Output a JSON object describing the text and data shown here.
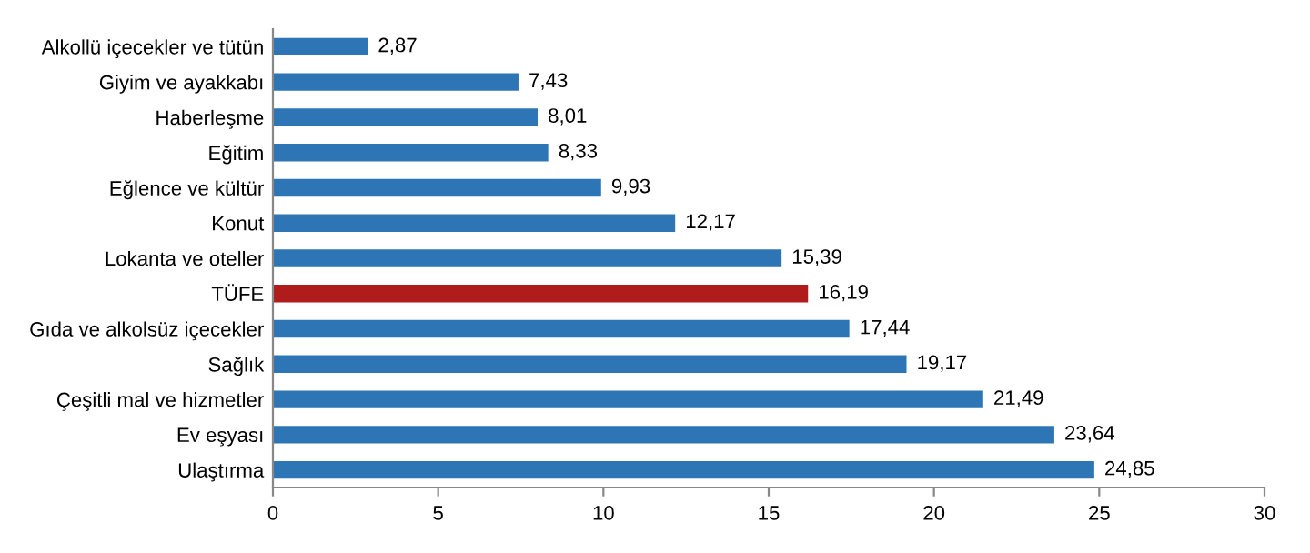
{
  "chart_data": {
    "type": "bar",
    "orientation": "horizontal",
    "categories": [
      "Alkollü içecekler ve tütün",
      "Giyim ve ayakkabı",
      "Haberleşme",
      "Eğitim",
      "Eğlence ve kültür",
      "Konut",
      "Lokanta ve oteller",
      "TÜFE",
      "Gıda ve alkolsüz içecekler",
      "Sağlık",
      "Çeşitli mal ve hizmetler",
      "Ev eşyası",
      "Ulaştırma"
    ],
    "values": [
      2.87,
      7.43,
      8.01,
      8.33,
      9.93,
      12.17,
      15.39,
      16.19,
      17.44,
      19.17,
      21.49,
      23.64,
      24.85
    ],
    "value_labels": [
      "2,87",
      "7,43",
      "8,01",
      "8,33",
      "9,93",
      "12,17",
      "15,39",
      "16,19",
      "17,44",
      "19,17",
      "21,49",
      "23,64",
      "24,85"
    ],
    "colors": [
      "#2e75b6",
      "#2e75b6",
      "#2e75b6",
      "#2e75b6",
      "#2e75b6",
      "#2e75b6",
      "#2e75b6",
      "#b01c1c",
      "#2e75b6",
      "#2e75b6",
      "#2e75b6",
      "#2e75b6",
      "#2e75b6"
    ],
    "xlim": [
      0,
      30
    ],
    "xticks": [
      0,
      5,
      10,
      15,
      20,
      25,
      30
    ],
    "grid": false,
    "legend": false
  }
}
